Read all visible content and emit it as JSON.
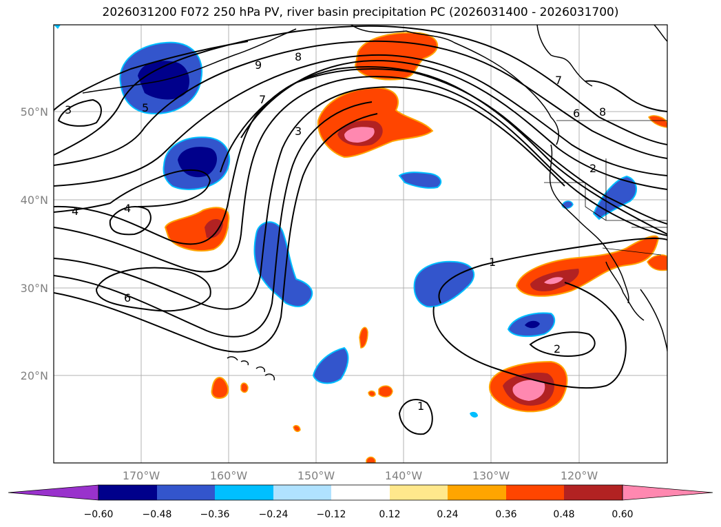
{
  "title": "2026031200 F072 250 hPa PV, river basin precipitation PC (2026031400 - 2026031700)",
  "lat_labels": [
    "50°N",
    "40°N",
    "30°N",
    "20°N"
  ],
  "lon_labels": [
    "170°W",
    "160°W",
    "150°W",
    "140°W",
    "130°W",
    "120°W"
  ],
  "contour_labels": [
    "3",
    "9",
    "8",
    "5",
    "7",
    "3",
    "4",
    "4",
    "6",
    "7",
    "6",
    "8",
    "2",
    "1",
    "2",
    "1"
  ],
  "colorbar": {
    "ticks": [
      "−0.60",
      "−0.48",
      "−0.36",
      "−0.24",
      "−0.12",
      "0.12",
      "0.24",
      "0.36",
      "0.48",
      "0.60"
    ],
    "colors": [
      "#9932cc",
      "#00008b",
      "#3355cc",
      "#00bfff",
      "#b0e2ff",
      "#ffffff",
      "#ffe88c",
      "#ffa500",
      "#ff4500",
      "#b22222",
      "#ff88b0"
    ]
  }
}
